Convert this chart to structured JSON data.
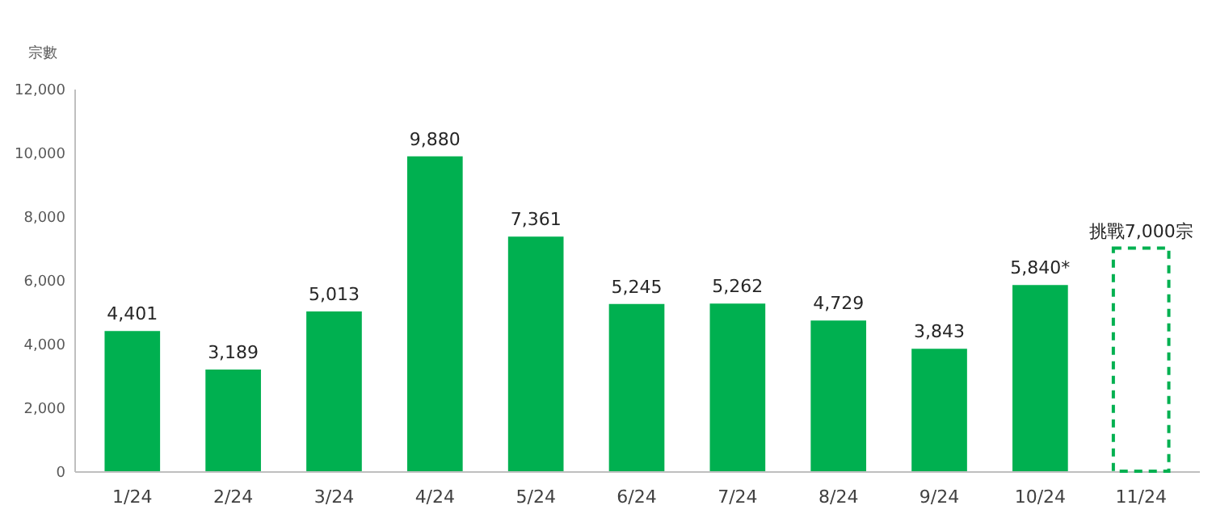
{
  "chart_data": {
    "type": "bar",
    "ylabel": "宗數",
    "categories": [
      "1/24",
      "2/24",
      "3/24",
      "4/24",
      "5/24",
      "6/24",
      "7/24",
      "8/24",
      "9/24",
      "10/24",
      "11/24"
    ],
    "series": [
      {
        "color": "#00b050",
        "values": [
          4401,
          3189,
          5013,
          9880,
          7361,
          5245,
          5262,
          4729,
          3843,
          5840,
          null
        ],
        "value_labels": [
          "4,401",
          "3,189",
          "5,013",
          "9,880",
          "7,361",
          "5,245",
          "5,262",
          "4,729",
          "3,843",
          "5,840*",
          null
        ]
      },
      {
        "color": "#00b050",
        "line_style": "dashed",
        "values": [
          null,
          null,
          null,
          null,
          null,
          null,
          null,
          null,
          null,
          null,
          7000
        ],
        "value_labels": [
          null,
          null,
          null,
          null,
          null,
          null,
          null,
          null,
          null,
          null,
          "挑戰7,000宗"
        ]
      }
    ],
    "ylim": [
      0,
      12000
    ],
    "yticks": [
      0,
      {
        "value": 2000,
        "label": "2,000"
      },
      {
        "value": 4000,
        "label": "4,000"
      },
      {
        "value": 6000,
        "label": "6,000"
      },
      {
        "value": 8000,
        "label": "8,000"
      },
      {
        "value": 10000,
        "label": "10,000"
      },
      {
        "value": 12000,
        "label": "12,000"
      }
    ],
    "grid": false
  }
}
